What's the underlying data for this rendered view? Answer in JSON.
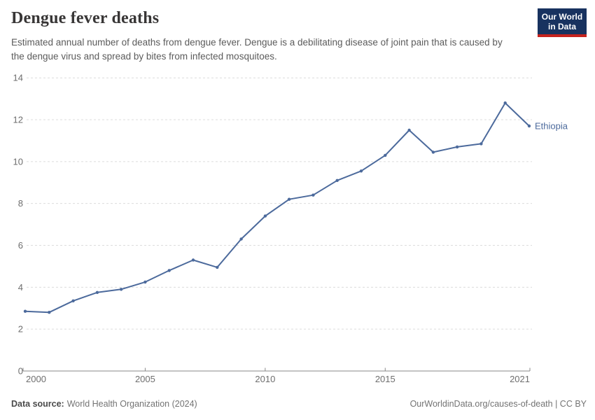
{
  "header": {
    "title": "Dengue fever deaths",
    "subtitle": "Estimated annual number of deaths from dengue fever. Dengue is a debilitating disease of joint pain that is caused by the dengue virus and spread by bites from infected mosquitoes."
  },
  "logo": {
    "line1": "Our World",
    "line2": "in Data",
    "bg_color": "#18325F",
    "accent_color": "#C5231E"
  },
  "footer": {
    "data_source_label": "Data source:",
    "data_source_value": "World Health Organization (2024)",
    "attribution": "OurWorldinData.org/causes-of-death | CC BY"
  },
  "chart_data": {
    "type": "line",
    "title": "Dengue fever deaths",
    "xlabel": "",
    "ylabel": "",
    "x": [
      2000,
      2001,
      2002,
      2003,
      2004,
      2005,
      2006,
      2007,
      2008,
      2009,
      2010,
      2011,
      2012,
      2013,
      2014,
      2015,
      2016,
      2017,
      2018,
      2019,
      2020,
      2021
    ],
    "series": [
      {
        "name": "Ethiopia",
        "color": "#4C6A9C",
        "values": [
          2.85,
          2.8,
          3.35,
          3.75,
          3.9,
          4.25,
          4.8,
          5.3,
          4.95,
          6.3,
          7.4,
          8.2,
          8.4,
          9.1,
          9.55,
          10.3,
          11.5,
          10.45,
          10.7,
          10.85,
          12.8,
          11.7
        ]
      }
    ],
    "ylim": [
      0,
      14
    ],
    "y_ticks": [
      0,
      2,
      4,
      6,
      8,
      10,
      12,
      14
    ],
    "x_ticks": [
      2000,
      2005,
      2010,
      2015,
      2021
    ],
    "grid": "horizontal-dashed",
    "legend": "line-end-label",
    "colors": {
      "grid": "#dcdcdc",
      "axis": "#8a8a8a",
      "tick_label": "#6e6e6e"
    }
  }
}
